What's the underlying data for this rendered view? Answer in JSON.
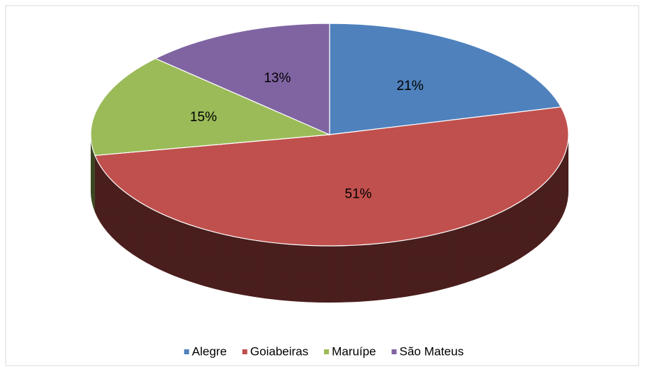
{
  "chart_data": {
    "type": "pie3d",
    "categories": [
      "Alegre",
      "Goiabeiras",
      "Maruípe",
      "São Mateus"
    ],
    "values": [
      21,
      51,
      15,
      13
    ],
    "value_labels": [
      "21%",
      "51%",
      "15%",
      "13%"
    ],
    "colors": [
      "#4f81bd",
      "#c0504d",
      "#9bbb59",
      "#8064a2"
    ],
    "legend": "bottom"
  }
}
